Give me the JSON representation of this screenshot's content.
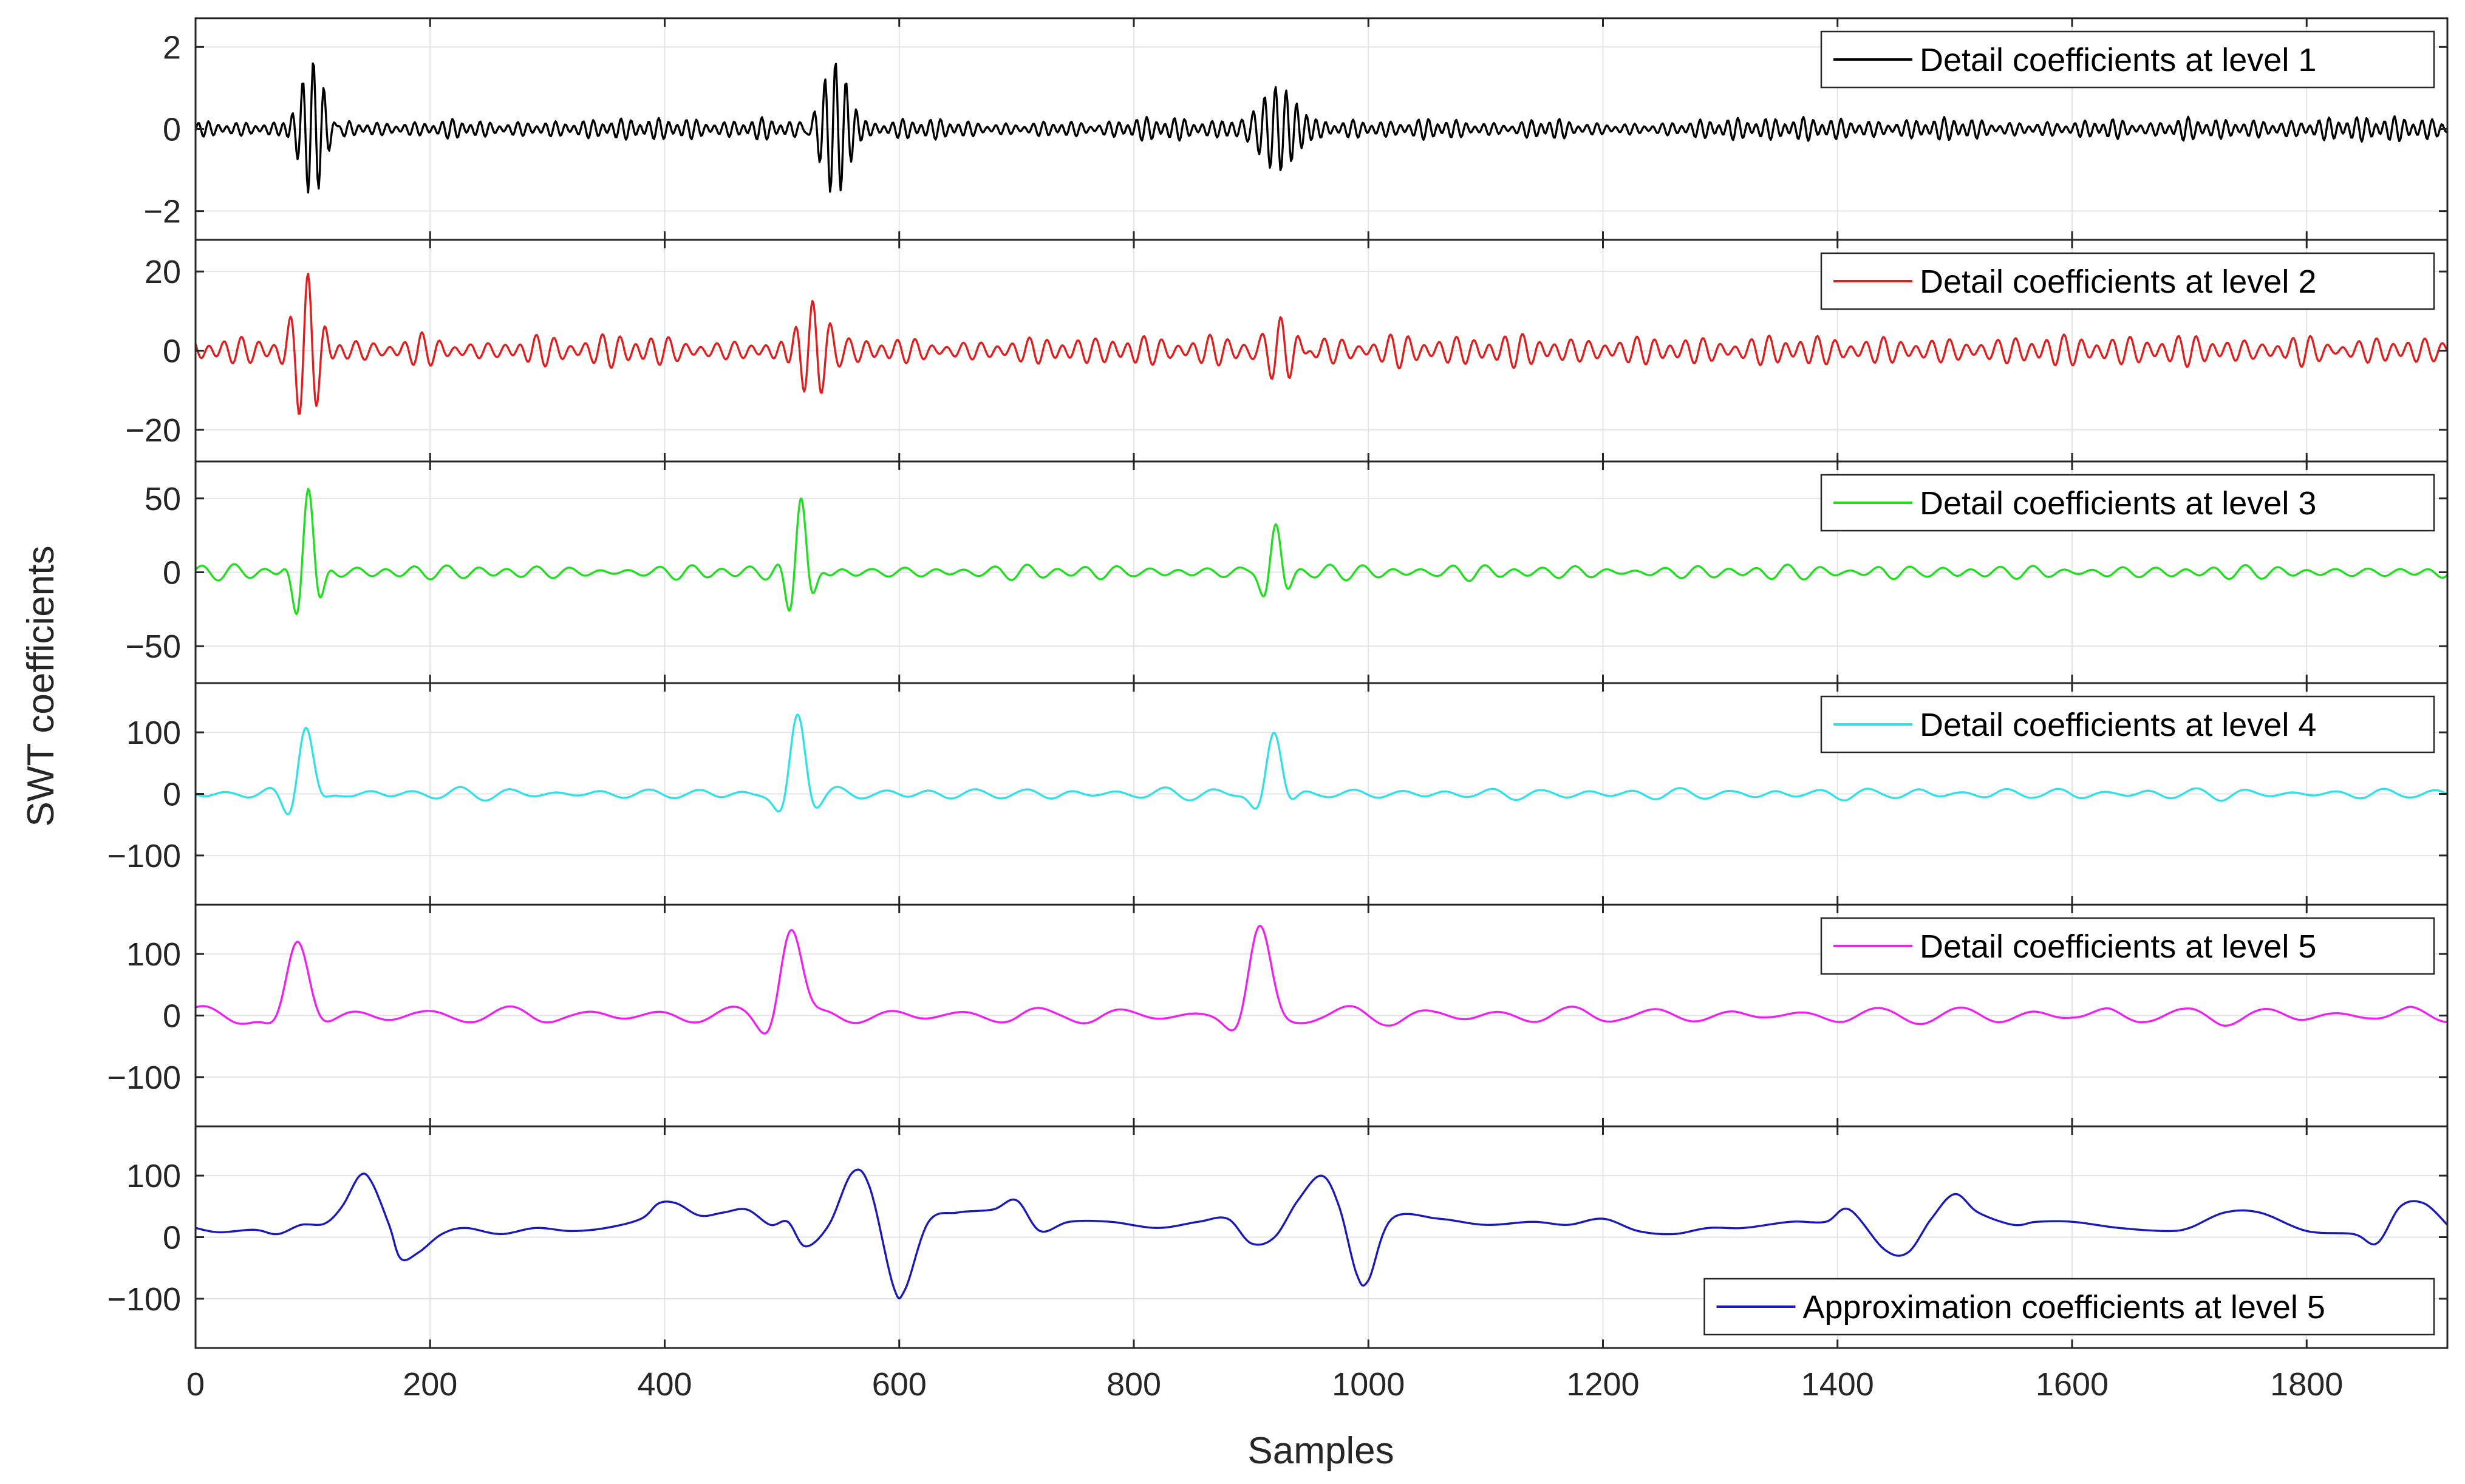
{
  "chart_data": {
    "type": "line",
    "ylabel": "SWT coefficients",
    "xlabel": "Samples",
    "xlim": [
      0,
      1920
    ],
    "xticks": [
      0,
      200,
      400,
      600,
      800,
      1000,
      1200,
      1400,
      1600,
      1800
    ],
    "xtick_labels": [
      "0",
      "200",
      "400",
      "600",
      "800",
      "1000",
      "1200",
      "1400",
      "1600",
      "1800"
    ],
    "grid": true,
    "subplots": [
      {
        "legend": "Detail coefficients at level 1",
        "color": "#000000",
        "ylim": [
          -2.7,
          2.7
        ],
        "yticks": [
          -2,
          0,
          2
        ],
        "ytick_labels": [
          "−2",
          "0",
          "2"
        ],
        "noise_amp": 0.2,
        "noise_period": 8,
        "events": [
          {
            "center": 100,
            "amp": 1.6,
            "width": 14,
            "freq": 0.11
          },
          {
            "center": 545,
            "amp": 1.6,
            "width": 16,
            "freq": 0.11
          },
          {
            "center": 920,
            "amp": 1.0,
            "width": 24,
            "freq": 0.11
          }
        ]
      },
      {
        "legend": "Detail coefficients at level 2",
        "color": "#e01e1e",
        "ylim": [
          -28,
          28
        ],
        "yticks": [
          -20,
          0,
          20
        ],
        "ytick_labels": [
          "−20",
          "0",
          "20"
        ],
        "noise_amp": 3,
        "noise_period": 14,
        "events": [
          {
            "center": 95,
            "amp": 16,
            "width": 14,
            "freq": 0.065
          },
          {
            "center": 525,
            "amp": 13,
            "width": 18,
            "freq": 0.065
          },
          {
            "center": 925,
            "amp": 9,
            "width": 18,
            "freq": 0.065
          }
        ]
      },
      {
        "legend": "Detail coefficients at level 3",
        "color": "#22dd22",
        "ylim": [
          -75,
          75
        ],
        "yticks": [
          -50,
          0,
          50
        ],
        "ytick_labels": [
          "−50",
          "0",
          "50"
        ],
        "noise_amp": 4,
        "noise_period": 26,
        "events": [
          {
            "center": 95,
            "amp": 60,
            "width": 12,
            "freq": 0.04
          },
          {
            "center": 515,
            "amp": 55,
            "width": 12,
            "freq": 0.04
          },
          {
            "center": 920,
            "amp": 32,
            "width": 12,
            "freq": 0.04
          }
        ]
      },
      {
        "legend": "Detail coefficients at level 4",
        "color": "#33e0e6",
        "ylim": [
          -180,
          180
        ],
        "yticks": [
          -100,
          0,
          100
        ],
        "ytick_labels": [
          "−100",
          "0",
          "100"
        ],
        "noise_amp": 8,
        "noise_period": 40,
        "events": [
          {
            "center": 92,
            "amp": 115,
            "width": 14,
            "freq": 0.022
          },
          {
            "center": 512,
            "amp": 130,
            "width": 14,
            "freq": 0.022
          },
          {
            "center": 918,
            "amp": 105,
            "width": 14,
            "freq": 0.022
          }
        ]
      },
      {
        "legend": "Detail coefficients at level 5",
        "color": "#ee22ee",
        "ylim": [
          -180,
          180
        ],
        "yticks": [
          -100,
          0,
          100
        ],
        "ytick_labels": [
          "−100",
          "0",
          "100"
        ],
        "noise_amp": 12,
        "noise_period": 65,
        "events": [
          {
            "center": 85,
            "amp": 120,
            "width": 18,
            "freq": 0.013
          },
          {
            "center": 505,
            "amp": 150,
            "width": 18,
            "freq": 0.013
          },
          {
            "center": 905,
            "amp": 140,
            "width": 18,
            "freq": 0.013
          }
        ]
      },
      {
        "legend": "Approximation coefficients at level 5",
        "color": "#1a1ab8",
        "ylim": [
          -180,
          180
        ],
        "yticks": [
          -100,
          0,
          100
        ],
        "ytick_labels": [
          "−100",
          "0",
          "100"
        ],
        "points": [
          [
            0,
            15
          ],
          [
            20,
            8
          ],
          [
            50,
            12
          ],
          [
            70,
            5
          ],
          [
            90,
            20
          ],
          [
            110,
            22
          ],
          [
            125,
            50
          ],
          [
            140,
            100
          ],
          [
            150,
            90
          ],
          [
            165,
            20
          ],
          [
            175,
            -35
          ],
          [
            190,
            -25
          ],
          [
            210,
            5
          ],
          [
            230,
            15
          ],
          [
            260,
            5
          ],
          [
            290,
            15
          ],
          [
            320,
            10
          ],
          [
            350,
            15
          ],
          [
            380,
            30
          ],
          [
            395,
            55
          ],
          [
            410,
            55
          ],
          [
            430,
            35
          ],
          [
            450,
            40
          ],
          [
            470,
            45
          ],
          [
            490,
            20
          ],
          [
            505,
            25
          ],
          [
            520,
            -15
          ],
          [
            540,
            20
          ],
          [
            560,
            105
          ],
          [
            575,
            80
          ],
          [
            595,
            -80
          ],
          [
            605,
            -85
          ],
          [
            625,
            25
          ],
          [
            650,
            40
          ],
          [
            680,
            45
          ],
          [
            700,
            60
          ],
          [
            720,
            10
          ],
          [
            745,
            25
          ],
          [
            780,
            25
          ],
          [
            820,
            15
          ],
          [
            855,
            25
          ],
          [
            880,
            30
          ],
          [
            900,
            -10
          ],
          [
            920,
            0
          ],
          [
            940,
            60
          ],
          [
            960,
            100
          ],
          [
            975,
            50
          ],
          [
            990,
            -60
          ],
          [
            1000,
            -70
          ],
          [
            1020,
            30
          ],
          [
            1060,
            30
          ],
          [
            1100,
            20
          ],
          [
            1140,
            25
          ],
          [
            1170,
            20
          ],
          [
            1200,
            30
          ],
          [
            1230,
            10
          ],
          [
            1260,
            5
          ],
          [
            1290,
            15
          ],
          [
            1320,
            15
          ],
          [
            1360,
            25
          ],
          [
            1390,
            25
          ],
          [
            1410,
            45
          ],
          [
            1440,
            -20
          ],
          [
            1460,
            -25
          ],
          [
            1480,
            30
          ],
          [
            1500,
            70
          ],
          [
            1520,
            40
          ],
          [
            1550,
            20
          ],
          [
            1570,
            25
          ],
          [
            1600,
            25
          ],
          [
            1640,
            15
          ],
          [
            1680,
            10
          ],
          [
            1700,
            15
          ],
          [
            1730,
            40
          ],
          [
            1760,
            40
          ],
          [
            1800,
            10
          ],
          [
            1840,
            5
          ],
          [
            1860,
            -10
          ],
          [
            1880,
            50
          ],
          [
            1900,
            55
          ],
          [
            1920,
            20
          ]
        ]
      }
    ]
  }
}
